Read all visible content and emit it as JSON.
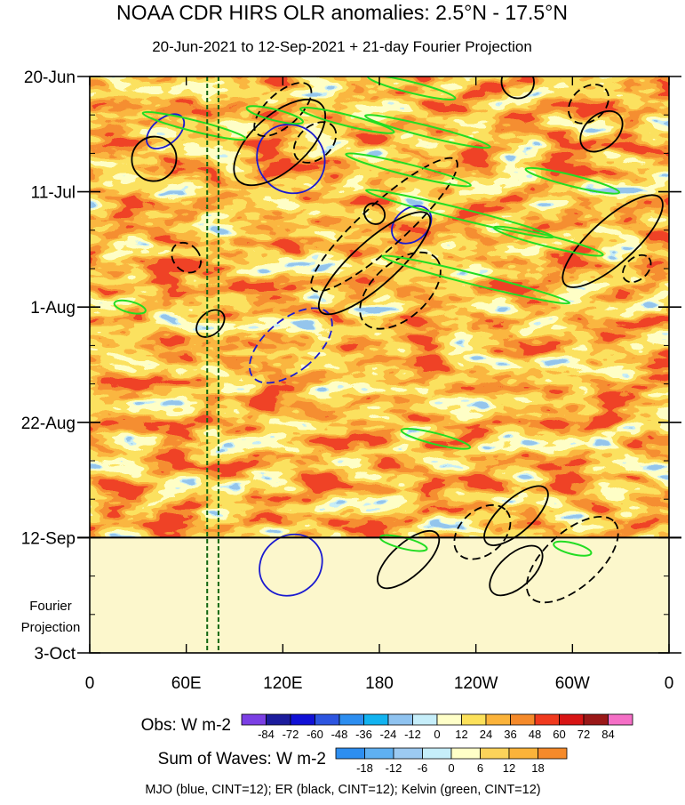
{
  "chart_data": {
    "type": "heatmap",
    "title": "NOAA CDR HIRS OLR anomalies: 2.5°N - 17.5°N",
    "subtitle": "20-Jun-2021 to 12-Sep-2021 + 21-day Fourier Projection",
    "x_ticks": [
      "0",
      "60E",
      "120E",
      "180",
      "120W",
      "60W",
      "0"
    ],
    "x_range_deg_east": [
      0,
      360
    ],
    "y_ticks": [
      "20-Jun",
      "11-Jul",
      "1-Aug",
      "22-Aug",
      "12-Sep",
      "3-Oct"
    ],
    "y_range_day_index": [
      0,
      105
    ],
    "observed_end_label": "12-Sep",
    "projection_label": [
      "Fourier",
      "Projection"
    ],
    "reference_lines_deg_east": [
      73,
      80
    ],
    "obs_colorbar": {
      "label": "Obs: W m-2",
      "ticks": [
        -84,
        -72,
        -60,
        -48,
        -36,
        -24,
        -12,
        0,
        12,
        24,
        36,
        48,
        60,
        72,
        84
      ],
      "colors": [
        "#7b3fe4",
        "#1c1c9c",
        "#1111d6",
        "#2d55e0",
        "#2d8ef0",
        "#12b3f0",
        "#8fc3f0",
        "#c6eefa",
        "#ffffc8",
        "#fce15a",
        "#fbb33a",
        "#f58a2a",
        "#f03a1e",
        "#d81515",
        "#9a1818",
        "#f56fc6"
      ]
    },
    "wave_colorbar": {
      "label": "Sum of Waves: W m-2",
      "ticks": [
        -18,
        -12,
        -6,
        0,
        6,
        12,
        18
      ],
      "colors": [
        "#2d8ef0",
        "#5fb0f2",
        "#9ccaf2",
        "#c6eefa",
        "#ffffc8",
        "#fcd35a",
        "#fbb33a",
        "#f58a2a"
      ]
    },
    "footer": "MJO (blue, CINT=12); ER (black, CINT=12); Kelvin (green, CINT=12)",
    "series": [
      {
        "name": "MJO",
        "color": "#1a1ad0",
        "contours": [
          {
            "lon": 47,
            "day": 10,
            "rlon": 8,
            "rday": 4,
            "neg": false
          },
          {
            "lon": 125,
            "day": 15,
            "rlon": 22,
            "rday": 6,
            "neg": false
          },
          {
            "lon": 200,
            "day": 27,
            "rlon": 10,
            "rday": 4,
            "neg": false
          },
          {
            "lon": 125,
            "day": 49,
            "rlon": 16,
            "rday": 9,
            "neg": true
          },
          {
            "lon": 125,
            "day": 89,
            "rlon": 18,
            "rday": 6,
            "neg": false
          }
        ]
      },
      {
        "name": "ER",
        "color": "#000000",
        "contours": [
          {
            "lon": 40,
            "day": 15,
            "rlon": 14,
            "rday": 4,
            "neg": false
          },
          {
            "lon": 118,
            "day": 12,
            "rlon": 35,
            "rday": 5,
            "neg": false
          },
          {
            "lon": 120,
            "day": 6,
            "rlon": 22,
            "rday": 3,
            "neg": true
          },
          {
            "lon": 140,
            "day": 12,
            "rlon": 15,
            "rday": 3,
            "neg": true
          },
          {
            "lon": 183,
            "day": 27,
            "rlon": 60,
            "rday": 4,
            "neg": true
          },
          {
            "lon": 177,
            "day": 34,
            "rlon": 45,
            "rday": 4,
            "neg": false
          },
          {
            "lon": 193,
            "day": 39,
            "rlon": 30,
            "rday": 5,
            "neg": true
          },
          {
            "lon": 177,
            "day": 25,
            "rlon": 6,
            "rday": 2,
            "neg": false
          },
          {
            "lon": 266,
            "day": 1,
            "rlon": 10,
            "rday": 3,
            "neg": false
          },
          {
            "lon": 310,
            "day": 5,
            "rlon": 14,
            "rday": 3,
            "neg": true
          },
          {
            "lon": 318,
            "day": 10,
            "rlon": 15,
            "rday": 3,
            "neg": false
          },
          {
            "lon": 325,
            "day": 30,
            "rlon": 40,
            "rday": 4,
            "neg": false
          },
          {
            "lon": 340,
            "day": 35,
            "rlon": 10,
            "rday": 2,
            "neg": true
          },
          {
            "lon": 265,
            "day": 80,
            "rlon": 25,
            "rday": 3,
            "neg": false
          },
          {
            "lon": 300,
            "day": 88,
            "rlon": 35,
            "rday": 5,
            "neg": true
          },
          {
            "lon": 244,
            "day": 83,
            "rlon": 20,
            "rday": 4,
            "neg": true
          },
          {
            "lon": 265,
            "day": 90,
            "rlon": 20,
            "rday": 3,
            "neg": false
          },
          {
            "lon": 198,
            "day": 88,
            "rlon": 24,
            "rday": 3,
            "neg": false
          },
          {
            "lon": 60,
            "day": 33,
            "rlon": 8,
            "rday": 3,
            "neg": true
          },
          {
            "lon": 75,
            "day": 45,
            "rlon": 10,
            "rday": 2,
            "neg": false
          }
        ]
      },
      {
        "name": "Kelvin",
        "color": "#22dd22",
        "contours": [
          {
            "lon": 65,
            "day": 9,
            "rlon": 33,
            "rday": 1,
            "neg": false
          },
          {
            "lon": 115,
            "day": 7,
            "rlon": 18,
            "rday": 1,
            "neg": false
          },
          {
            "lon": 160,
            "day": 8,
            "rlon": 30,
            "rday": 1,
            "neg": false
          },
          {
            "lon": 200,
            "day": 2,
            "rlon": 28,
            "rday": 1,
            "neg": false
          },
          {
            "lon": 210,
            "day": 10,
            "rlon": 40,
            "rday": 1,
            "neg": false
          },
          {
            "lon": 198,
            "day": 17,
            "rlon": 40,
            "rday": 1,
            "neg": false
          },
          {
            "lon": 300,
            "day": 19,
            "rlon": 30,
            "rday": 1,
            "neg": false
          },
          {
            "lon": 230,
            "day": 25,
            "rlon": 60,
            "rday": 1,
            "neg": false
          },
          {
            "lon": 285,
            "day": 30,
            "rlon": 35,
            "rday": 1,
            "neg": false
          },
          {
            "lon": 240,
            "day": 37,
            "rlon": 60,
            "rday": 1,
            "neg": false
          },
          {
            "lon": 25,
            "day": 42,
            "rlon": 10,
            "rday": 1,
            "neg": false
          },
          {
            "lon": 215,
            "day": 66,
            "rlon": 22,
            "rday": 1,
            "neg": false
          },
          {
            "lon": 195,
            "day": 85,
            "rlon": 15,
            "rday": 1,
            "neg": false
          },
          {
            "lon": 300,
            "day": 86,
            "rlon": 12,
            "rday": 1,
            "neg": false
          }
        ]
      }
    ]
  }
}
